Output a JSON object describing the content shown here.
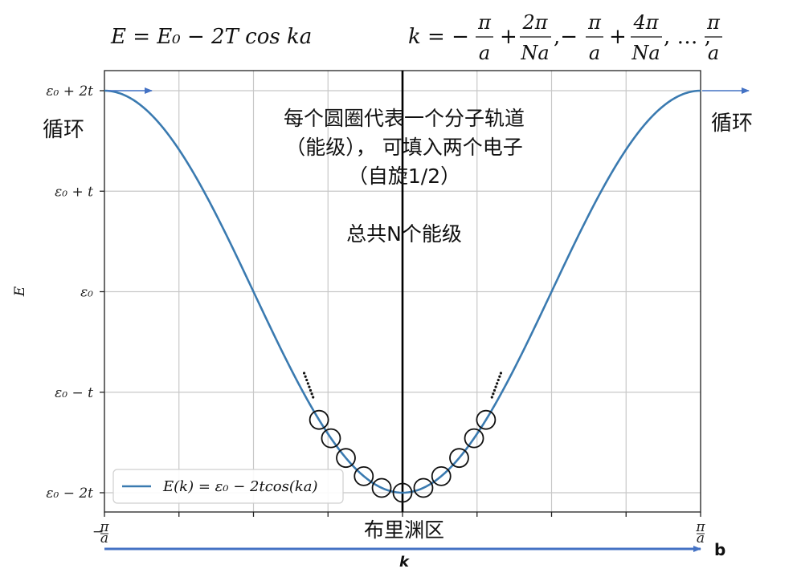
{
  "formulas": {
    "energy": "E = E₀ − 2T cos ka",
    "k_prefix": "k = −",
    "k_pi": "π",
    "k_a": "a",
    "k_2pi": "2π",
    "k_4pi": "4π",
    "k_Na": "Na",
    "k_plus": "+",
    "k_comma_minus": ",−",
    "k_ellipsis": ", … ,"
  },
  "annotations": {
    "orbital_line1": "每个圆圈代表一个分子轨道",
    "orbital_line2": "（能级），  可填入两个电子",
    "orbital_line3": "（自旋1/2）",
    "total_levels": "总共N个能级",
    "cycle_left": "循环",
    "cycle_right": "循环",
    "brillouin_zone": "布里渊区",
    "b_label": "b"
  },
  "chart_data": {
    "type": "line",
    "function": "E(k) = ε0 − 2t·cos(ka)",
    "xlabel": "k",
    "ylabel": "E",
    "xlim": [
      -1,
      1
    ],
    "x_unit": "π/a",
    "ylim": [
      -2.1,
      2.1
    ],
    "y_unit": "t relative to ε0",
    "x_ticks": [
      {
        "value": -1,
        "num": "π",
        "den": "a",
        "sign": "−"
      },
      {
        "value": 1,
        "num": "π",
        "den": "a",
        "sign": ""
      }
    ],
    "y_ticks": [
      {
        "value": 2,
        "label": "ε₀ + 2t"
      },
      {
        "value": 1,
        "label": "ε₀ + t"
      },
      {
        "value": 0,
        "label": "ε₀"
      },
      {
        "value": -1,
        "label": "ε₀ − t"
      },
      {
        "value": -2,
        "label": "ε₀ − 2t"
      }
    ],
    "grid": true,
    "grid_x": [
      -1,
      -0.75,
      -0.5,
      -0.25,
      0,
      0.25,
      0.5,
      0.75,
      1
    ],
    "grid_y": [
      -2,
      -1,
      0,
      1,
      2
    ],
    "series": [
      {
        "name": "E(k) = ε₀ − 2tcos(ka)",
        "color": "#3a7ab0",
        "samples": 201
      }
    ],
    "legend_position": "lower-left",
    "center_line_k": 0,
    "orbital_circles_k": [
      -0.28,
      -0.24,
      -0.19,
      -0.13,
      -0.07,
      0,
      0.07,
      0.13,
      0.19,
      0.24,
      0.28
    ],
    "ellipsis_dots": [
      {
        "k_start": -0.33,
        "k_end": -0.3,
        "e_start": -0.81,
        "e_end": -1.05
      },
      {
        "k_start": 0.33,
        "k_end": 0.3,
        "e_start": -0.81,
        "e_end": -1.05
      }
    ],
    "accent_color": "#4472c4"
  }
}
